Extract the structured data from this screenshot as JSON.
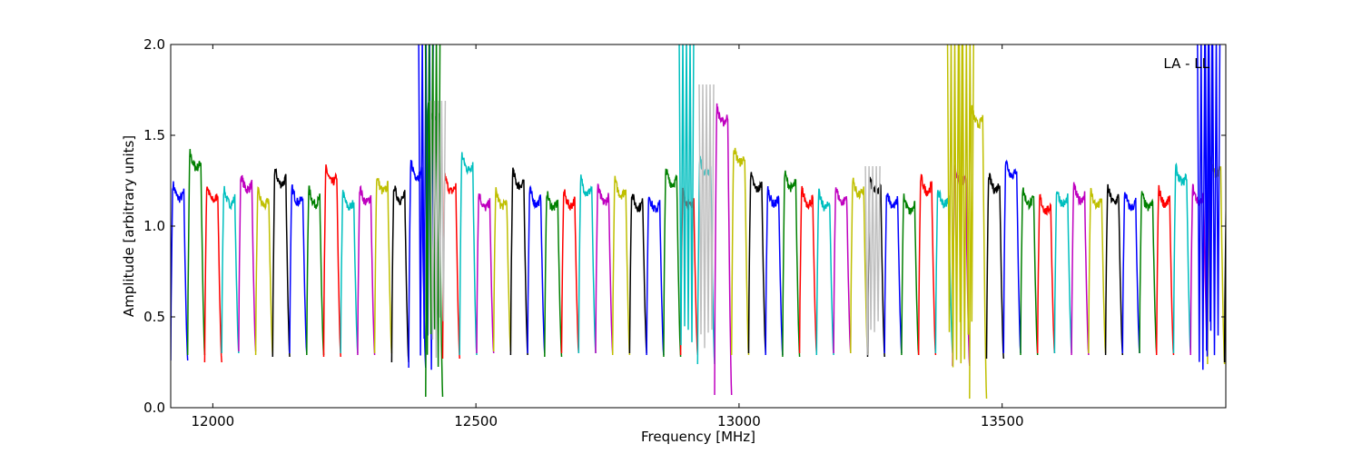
{
  "chart_data": {
    "type": "line",
    "title": "",
    "xlabel": "Frequency [MHz]",
    "ylabel": "Amplitude [arbitrary units]",
    "xlim": [
      11920,
      13925
    ],
    "ylim": [
      0.0,
      2.0
    ],
    "xticks": [
      {
        "value": 12000,
        "label": "12000"
      },
      {
        "value": 12500,
        "label": "12500"
      },
      {
        "value": 13000,
        "label": "13000"
      },
      {
        "value": 13500,
        "label": "13500"
      }
    ],
    "yticks": [
      {
        "value": 0.0,
        "label": "0.0"
      },
      {
        "value": 0.5,
        "label": "0.5"
      },
      {
        "value": 1.0,
        "label": "1.0"
      },
      {
        "value": 1.5,
        "label": "1.5"
      },
      {
        "value": 2.0,
        "label": "2.0"
      }
    ],
    "grid": false,
    "annotation": {
      "text": "LA - LL",
      "placement": "top-right"
    },
    "channel_start": 11920,
    "channel_width": 32.3,
    "colors": [
      "#0000ff",
      "#008000",
      "#ff0000",
      "#00bfbf",
      "#bf00bf",
      "#bfbf00",
      "#000000"
    ],
    "channel_peak_levels": [
      1.24,
      1.41,
      1.23,
      1.21,
      1.29,
      1.2,
      1.32,
      1.22,
      1.21,
      1.33,
      1.19,
      1.22,
      1.28,
      1.23,
      1.36,
      1.67,
      1.28,
      1.4,
      1.19,
      1.2,
      1.31,
      1.21,
      1.19,
      1.2,
      1.27,
      1.22,
      1.26,
      1.19,
      1.18,
      1.32,
      1.2,
      1.38,
      1.66,
      1.44,
      1.29,
      1.21,
      1.3,
      1.21,
      1.19,
      1.22,
      1.26,
      1.27,
      1.2,
      1.17,
      1.28,
      1.21,
      1.33,
      1.65,
      1.29,
      1.37,
      1.21,
      1.17,
      1.21,
      1.23,
      1.2,
      1.22,
      1.19,
      1.19,
      1.21,
      1.33,
      1.22,
      1.38,
      1.29,
      1.35
    ],
    "channel_min_levels": [
      0.26,
      0.29,
      0.25,
      0.3,
      0.31,
      0.29,
      0.28,
      0.3,
      0.29,
      0.28,
      0.3,
      0.29,
      0.3,
      0.25,
      0.22,
      0.06,
      0.27,
      0.29,
      0.3,
      0.31,
      0.29,
      0.3,
      0.28,
      0.3,
      0.3,
      0.3,
      0.29,
      0.3,
      0.29,
      0.28,
      0.29,
      0.24,
      0.07,
      0.29,
      0.3,
      0.29,
      0.28,
      0.3,
      0.29,
      0.3,
      0.3,
      0.28,
      0.3,
      0.29,
      0.29,
      0.3,
      0.23,
      0.05,
      0.27,
      0.3,
      0.29,
      0.3,
      0.3,
      0.29,
      0.3,
      0.29,
      0.3,
      0.3,
      0.29,
      0.3,
      0.29,
      0.24,
      0.25,
      0.04
    ],
    "spikes": [
      {
        "x": 12405,
        "y": 2.05,
        "color": "#0000ff"
      },
      {
        "x": 12418,
        "y": 2.05,
        "color": "#008000"
      },
      {
        "x": 12428,
        "y": 1.69,
        "color": "#bfbfbf"
      },
      {
        "x": 12900,
        "y": 2.05,
        "color": "#00bfbf"
      },
      {
        "x": 12938,
        "y": 1.78,
        "color": "#bfbfbf"
      },
      {
        "x": 13254,
        "y": 1.33,
        "color": "#bfbfbf"
      },
      {
        "x": 13410,
        "y": 2.05,
        "color": "#bfbf00"
      },
      {
        "x": 13432,
        "y": 2.05,
        "color": "#bfbf00"
      },
      {
        "x": 13885,
        "y": 2.05,
        "color": "#0000ff"
      },
      {
        "x": 13900,
        "y": 2.05,
        "color": "#0000ff"
      }
    ]
  }
}
